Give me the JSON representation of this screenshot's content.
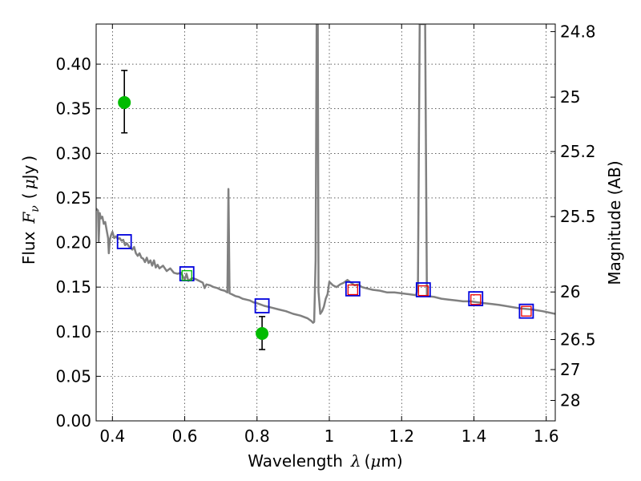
{
  "chart_data": {
    "type": "scatter",
    "title": "",
    "xlabel_parts": {
      "prefix": "Wavelength",
      "symbol": "λ",
      "open": "(",
      "unit_sym": "μ",
      "unit_rest": "m",
      "close": ")"
    },
    "ylabel_parts": {
      "prefix": "Flux",
      "symbol": "F",
      "sub": "ν",
      "open": "(",
      "unit_sym": "μ",
      "unit_rest": "Jy",
      "close": ")"
    },
    "y2label": "Magnitude (AB)",
    "xlim": [
      0.355,
      1.625
    ],
    "ylim": [
      0.0,
      0.445
    ],
    "grid": true,
    "x_ticks": [
      {
        "v": 0.4,
        "label": "0.4"
      },
      {
        "v": 0.6,
        "label": "0.6"
      },
      {
        "v": 0.8,
        "label": "0.8"
      },
      {
        "v": 1.0,
        "label": "1"
      },
      {
        "v": 1.2,
        "label": "1.2"
      },
      {
        "v": 1.4,
        "label": "1.4"
      },
      {
        "v": 1.6,
        "label": "1.6"
      }
    ],
    "y_ticks": [
      {
        "v": 0.0,
        "label": "0.00"
      },
      {
        "v": 0.05,
        "label": "0.05"
      },
      {
        "v": 0.1,
        "label": "0.10"
      },
      {
        "v": 0.15,
        "label": "0.15"
      },
      {
        "v": 0.2,
        "label": "0.20"
      },
      {
        "v": 0.25,
        "label": "0.25"
      },
      {
        "v": 0.3,
        "label": "0.30"
      },
      {
        "v": 0.35,
        "label": "0.35"
      },
      {
        "v": 0.4,
        "label": "0.40"
      }
    ],
    "y2_ticks": [
      {
        "mag": 24.8,
        "label": "24.8"
      },
      {
        "mag": 25.0,
        "label": "25"
      },
      {
        "mag": 25.2,
        "label": "25.2"
      },
      {
        "mag": 25.5,
        "label": "25.5"
      },
      {
        "mag": 26.0,
        "label": "26"
      },
      {
        "mag": 26.5,
        "label": "26.5"
      },
      {
        "mag": 27.0,
        "label": "27"
      },
      {
        "mag": 28.0,
        "label": "28"
      }
    ],
    "model_spectrum": {
      "color": "#808080",
      "points": [
        [
          0.355,
          0.238
        ],
        [
          0.36,
          0.236
        ],
        [
          0.362,
          0.201
        ],
        [
          0.365,
          0.233
        ],
        [
          0.368,
          0.227
        ],
        [
          0.372,
          0.229
        ],
        [
          0.376,
          0.221
        ],
        [
          0.38,
          0.223
        ],
        [
          0.385,
          0.212
        ],
        [
          0.388,
          0.205
        ],
        [
          0.39,
          0.188
        ],
        [
          0.393,
          0.203
        ],
        [
          0.396,
          0.208
        ],
        [
          0.4,
          0.212
        ],
        [
          0.405,
          0.205
        ],
        [
          0.41,
          0.207
        ],
        [
          0.415,
          0.204
        ],
        [
          0.42,
          0.205
        ],
        [
          0.425,
          0.202
        ],
        [
          0.43,
          0.203
        ],
        [
          0.435,
          0.197
        ],
        [
          0.44,
          0.199
        ],
        [
          0.445,
          0.196
        ],
        [
          0.45,
          0.194
        ],
        [
          0.455,
          0.192
        ],
        [
          0.46,
          0.195
        ],
        [
          0.465,
          0.188
        ],
        [
          0.47,
          0.185
        ],
        [
          0.475,
          0.188
        ],
        [
          0.48,
          0.183
        ],
        [
          0.485,
          0.182
        ],
        [
          0.49,
          0.178
        ],
        [
          0.495,
          0.183
        ],
        [
          0.5,
          0.177
        ],
        [
          0.505,
          0.18
        ],
        [
          0.51,
          0.174
        ],
        [
          0.515,
          0.18
        ],
        [
          0.52,
          0.172
        ],
        [
          0.525,
          0.175
        ],
        [
          0.53,
          0.171
        ],
        [
          0.54,
          0.174
        ],
        [
          0.55,
          0.168
        ],
        [
          0.56,
          0.171
        ],
        [
          0.57,
          0.166
        ],
        [
          0.58,
          0.165
        ],
        [
          0.59,
          0.166
        ],
        [
          0.6,
          0.158
        ],
        [
          0.605,
          0.165
        ],
        [
          0.61,
          0.157
        ],
        [
          0.62,
          0.16
        ],
        [
          0.63,
          0.159
        ],
        [
          0.64,
          0.157
        ],
        [
          0.65,
          0.155
        ],
        [
          0.655,
          0.149
        ],
        [
          0.66,
          0.153
        ],
        [
          0.67,
          0.152
        ],
        [
          0.68,
          0.15
        ],
        [
          0.69,
          0.149
        ],
        [
          0.7,
          0.147
        ],
        [
          0.71,
          0.146
        ],
        [
          0.718,
          0.144
        ],
        [
          0.721,
          0.26
        ],
        [
          0.724,
          0.143
        ],
        [
          0.73,
          0.142
        ],
        [
          0.74,
          0.14
        ],
        [
          0.75,
          0.139
        ],
        [
          0.76,
          0.137
        ],
        [
          0.77,
          0.136
        ],
        [
          0.78,
          0.135
        ],
        [
          0.79,
          0.133
        ],
        [
          0.8,
          0.132
        ],
        [
          0.82,
          0.129
        ],
        [
          0.84,
          0.127
        ],
        [
          0.86,
          0.125
        ],
        [
          0.88,
          0.123
        ],
        [
          0.9,
          0.12
        ],
        [
          0.92,
          0.118
        ],
        [
          0.94,
          0.115
        ],
        [
          0.95,
          0.112
        ],
        [
          0.955,
          0.11
        ],
        [
          0.958,
          0.111
        ],
        [
          0.962,
          0.18
        ],
        [
          0.965,
          0.445
        ],
        [
          0.968,
          0.445
        ],
        [
          0.97,
          0.145
        ],
        [
          0.975,
          0.12
        ],
        [
          0.98,
          0.123
        ],
        [
          0.985,
          0.128
        ],
        [
          0.99,
          0.137
        ],
        [
          0.995,
          0.142
        ],
        [
          1.0,
          0.156
        ],
        [
          1.01,
          0.152
        ],
        [
          1.02,
          0.15
        ],
        [
          1.03,
          0.153
        ],
        [
          1.04,
          0.155
        ],
        [
          1.05,
          0.158
        ],
        [
          1.06,
          0.155
        ],
        [
          1.07,
          0.152
        ],
        [
          1.08,
          0.153
        ],
        [
          1.09,
          0.15
        ],
        [
          1.1,
          0.149
        ],
        [
          1.12,
          0.147
        ],
        [
          1.14,
          0.146
        ],
        [
          1.16,
          0.144
        ],
        [
          1.18,
          0.144
        ],
        [
          1.2,
          0.143
        ],
        [
          1.22,
          0.142
        ],
        [
          1.24,
          0.141
        ],
        [
          1.245,
          0.15
        ],
        [
          1.25,
          0.445
        ],
        [
          1.265,
          0.445
        ],
        [
          1.27,
          0.14
        ],
        [
          1.29,
          0.139
        ],
        [
          1.31,
          0.137
        ],
        [
          1.33,
          0.136
        ],
        [
          1.35,
          0.135
        ],
        [
          1.37,
          0.134
        ],
        [
          1.39,
          0.134
        ],
        [
          1.41,
          0.133
        ],
        [
          1.43,
          0.132
        ],
        [
          1.45,
          0.131
        ],
        [
          1.47,
          0.13
        ],
        [
          1.5,
          0.128
        ],
        [
          1.53,
          0.126
        ],
        [
          1.56,
          0.125
        ],
        [
          1.59,
          0.123
        ],
        [
          1.625,
          0.12
        ]
      ]
    },
    "observed": {
      "color": "#00bb00",
      "points": [
        {
          "x": 0.433,
          "y": 0.357,
          "err_lo": 0.323,
          "err_hi": 0.393
        },
        {
          "x": 0.814,
          "y": 0.098,
          "err_lo": 0.08,
          "err_hi": 0.117
        }
      ]
    },
    "blue_squares": {
      "color": "#0000dd",
      "points": [
        [
          0.433,
          0.201
        ],
        [
          0.606,
          0.165
        ],
        [
          0.814,
          0.129
        ],
        [
          1.065,
          0.148
        ],
        [
          1.26,
          0.147
        ],
        [
          1.405,
          0.137
        ],
        [
          1.545,
          0.123
        ]
      ]
    },
    "red_squares": {
      "color": "#ee0000",
      "points": [
        [
          1.065,
          0.147
        ],
        [
          1.26,
          0.146
        ],
        [
          1.405,
          0.136
        ],
        [
          1.545,
          0.123
        ]
      ]
    },
    "green_squares": {
      "color": "#00bb00",
      "points": [
        [
          0.606,
          0.163
        ]
      ]
    }
  }
}
